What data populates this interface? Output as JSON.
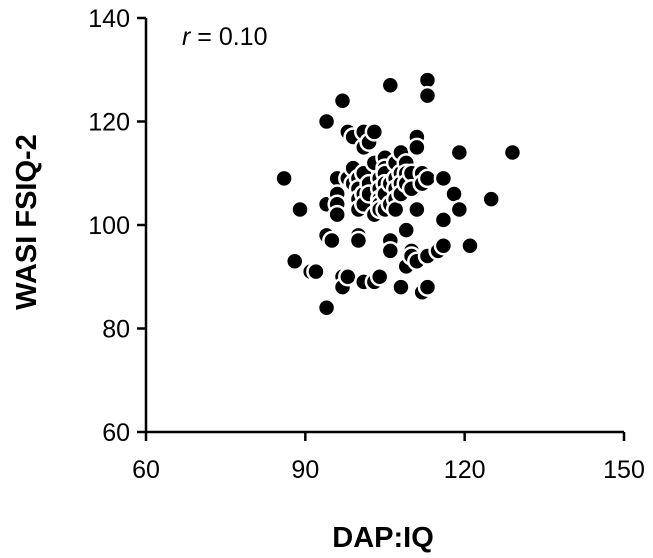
{
  "chart_data": {
    "type": "scatter",
    "xlabel": "DAP:IQ",
    "ylabel": "WASI FSIQ-2",
    "xlim": [
      60,
      150
    ],
    "ylim": [
      60,
      140
    ],
    "xticks": [
      60,
      90,
      120,
      150
    ],
    "yticks": [
      60,
      80,
      100,
      120,
      140
    ],
    "annotation": {
      "symbol": "r",
      "text": " = 0.10"
    },
    "grid": false,
    "legend": "none",
    "marker_color": "#000000",
    "marker_edge": "#ffffff",
    "series": [
      {
        "points": [
          [
            86,
            109
          ],
          [
            89,
            103
          ],
          [
            88,
            93
          ],
          [
            91,
            91
          ],
          [
            92,
            91
          ],
          [
            94,
            84
          ],
          [
            94,
            120
          ],
          [
            94,
            104
          ],
          [
            94,
            98
          ],
          [
            95,
            97
          ],
          [
            96,
            109
          ],
          [
            96,
            106
          ],
          [
            96,
            104
          ],
          [
            96,
            102
          ],
          [
            97,
            124
          ],
          [
            97,
            90
          ],
          [
            97,
            88
          ],
          [
            98,
            118
          ],
          [
            98,
            90
          ],
          [
            98,
            109
          ],
          [
            99,
            117
          ],
          [
            99,
            111
          ],
          [
            99,
            108
          ],
          [
            100,
            109
          ],
          [
            100,
            107
          ],
          [
            100,
            105
          ],
          [
            100,
            103
          ],
          [
            100,
            98
          ],
          [
            100,
            97
          ],
          [
            101,
            118
          ],
          [
            101,
            115
          ],
          [
            101,
            110
          ],
          [
            101,
            106
          ],
          [
            101,
            104
          ],
          [
            101,
            89
          ],
          [
            102,
            116
          ],
          [
            102,
            108
          ],
          [
            102,
            106
          ],
          [
            103,
            118
          ],
          [
            103,
            112
          ],
          [
            103,
            102
          ],
          [
            103,
            89
          ],
          [
            104,
            109
          ],
          [
            104,
            107
          ],
          [
            104,
            105
          ],
          [
            104,
            104
          ],
          [
            104,
            103
          ],
          [
            104,
            90
          ],
          [
            105,
            113
          ],
          [
            105,
            111
          ],
          [
            105,
            110
          ],
          [
            105,
            108
          ],
          [
            105,
            106
          ],
          [
            105,
            103
          ],
          [
            106,
            127
          ],
          [
            106,
            108
          ],
          [
            106,
            104
          ],
          [
            106,
            97
          ],
          [
            106,
            95
          ],
          [
            107,
            112
          ],
          [
            107,
            109
          ],
          [
            107,
            107
          ],
          [
            107,
            105
          ],
          [
            107,
            103
          ],
          [
            108,
            114
          ],
          [
            108,
            110
          ],
          [
            108,
            108
          ],
          [
            108,
            106
          ],
          [
            108,
            88
          ],
          [
            109,
            112
          ],
          [
            109,
            110
          ],
          [
            109,
            108
          ],
          [
            109,
            99
          ],
          [
            109,
            92
          ],
          [
            110,
            110
          ],
          [
            110,
            107
          ],
          [
            110,
            95
          ],
          [
            110,
            94
          ],
          [
            111,
            117
          ],
          [
            111,
            115
          ],
          [
            111,
            103
          ],
          [
            111,
            93
          ],
          [
            112,
            110
          ],
          [
            112,
            108
          ],
          [
            112,
            87
          ],
          [
            113,
            128
          ],
          [
            113,
            125
          ],
          [
            113,
            109
          ],
          [
            113,
            94
          ],
          [
            113,
            88
          ],
          [
            115,
            95
          ],
          [
            116,
            109
          ],
          [
            116,
            101
          ],
          [
            116,
            96
          ],
          [
            118,
            106
          ],
          [
            119,
            114
          ],
          [
            119,
            103
          ],
          [
            121,
            96
          ],
          [
            125,
            105
          ],
          [
            129,
            114
          ]
        ]
      }
    ]
  }
}
